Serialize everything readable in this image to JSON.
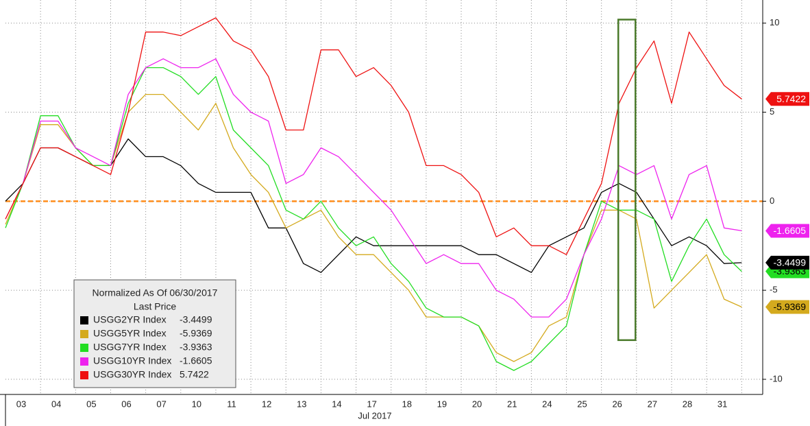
{
  "chart_data": {
    "type": "line",
    "x": [
      0,
      0.5,
      1,
      1.5,
      2,
      2.5,
      3,
      3.5,
      4,
      4.5,
      5,
      5.5,
      6,
      6.5,
      7,
      7.5,
      8,
      8.5,
      9,
      9.5,
      10,
      10.5,
      11,
      11.5,
      12,
      12.5,
      13,
      13.5,
      14,
      14.5,
      15,
      15.5,
      16,
      16.5,
      17,
      17.5,
      18,
      18.5,
      19,
      19.5,
      20,
      20.5,
      21
    ],
    "xlim": [
      0,
      21.6
    ],
    "xticks": [
      {
        "value": 0.45,
        "label": "03"
      },
      {
        "value": 1.45,
        "label": "04"
      },
      {
        "value": 2.45,
        "label": "05"
      },
      {
        "value": 3.45,
        "label": "06"
      },
      {
        "value": 4.45,
        "label": "07"
      },
      {
        "value": 5.45,
        "label": "10"
      },
      {
        "value": 6.45,
        "label": "11"
      },
      {
        "value": 7.45,
        "label": "12"
      },
      {
        "value": 8.45,
        "label": "13"
      },
      {
        "value": 9.45,
        "label": "14"
      },
      {
        "value": 10.45,
        "label": "17"
      },
      {
        "value": 11.45,
        "label": "18"
      },
      {
        "value": 12.45,
        "label": "19"
      },
      {
        "value": 13.45,
        "label": "20"
      },
      {
        "value": 14.45,
        "label": "21"
      },
      {
        "value": 15.45,
        "label": "24"
      },
      {
        "value": 16.45,
        "label": "25"
      },
      {
        "value": 17.45,
        "label": "26"
      },
      {
        "value": 18.45,
        "label": "27"
      },
      {
        "value": 19.45,
        "label": "28"
      },
      {
        "value": 20.45,
        "label": "31"
      }
    ],
    "xgrid": [
      1,
      2,
      3,
      4,
      5,
      6,
      7,
      8,
      9,
      10,
      11,
      12,
      13,
      14,
      15,
      16,
      17,
      18,
      19,
      20,
      21
    ],
    "x_label": "Jul 2017",
    "ylim": [
      -10.85,
      11.3
    ],
    "yticks": [
      10,
      5,
      0,
      -5,
      -10
    ],
    "grid": true,
    "hline": {
      "value": 0,
      "color": "#ff8c1a"
    },
    "highlight": {
      "x": [
        17.48,
        17.97
      ],
      "y": [
        -7.8,
        10.2
      ],
      "color": "#4a7a2a"
    },
    "legend_title": "Normalized As Of 06/30/2017",
    "legend_subtitle": "Last Price",
    "series": [
      {
        "name": "USGG2YR Index",
        "color": "#000000",
        "last_price": -3.4499,
        "label_text_color": "#ffffff",
        "values": [
          0,
          1,
          3,
          3,
          2.5,
          2,
          2,
          3.5,
          2.5,
          2.5,
          2,
          1,
          0.5,
          0.5,
          0.5,
          -1.5,
          -1.5,
          -3.5,
          -4,
          -3,
          -2,
          -2.5,
          -2.5,
          -2.5,
          -2.5,
          -2.5,
          -2.5,
          -3,
          -3,
          -3.5,
          -4,
          -2.5,
          -2,
          -1.5,
          0.5,
          1,
          0.5,
          -1,
          -2.5,
          -2,
          -2.5,
          -3.5,
          -3.45
        ]
      },
      {
        "name": "USGG5YR Index",
        "color": "#d4aa1e",
        "last_price": -5.9369,
        "label_text_color": "#000000",
        "values": [
          -1.3,
          1,
          4.3,
          4.3,
          3,
          2,
          2,
          5,
          6,
          6,
          5,
          4,
          5.5,
          3,
          1.5,
          0.5,
          -1.5,
          -1,
          -0.5,
          -2,
          -3,
          -3,
          -4,
          -5,
          -6.5,
          -6.5,
          -6.5,
          -7,
          -8.5,
          -9,
          -8.5,
          -7,
          -6.5,
          -3,
          -0.5,
          -0.5,
          -1,
          -6,
          -5,
          -4,
          -3,
          -5.5,
          -5.94
        ]
      },
      {
        "name": "USGG7YR Index",
        "color": "#22dd22",
        "last_price": -3.9363,
        "label_text_color": "#000000",
        "values": [
          -1.5,
          1,
          4.8,
          4.8,
          3,
          2,
          2,
          5.5,
          7.5,
          7.5,
          7,
          6,
          7,
          4,
          3,
          2,
          -0.5,
          -1,
          0,
          -1.5,
          -2.5,
          -2,
          -3.5,
          -4.5,
          -6,
          -6.5,
          -6.5,
          -7,
          -9,
          -9.5,
          -9,
          -8,
          -7,
          -3,
          0,
          -0.5,
          -0.5,
          -1,
          -4.5,
          -2.5,
          -1,
          -3,
          -3.94
        ]
      },
      {
        "name": "USGG10YR Index",
        "color": "#ee22ee",
        "last_price": -1.6605,
        "label_text_color": "#ffffff",
        "values": [
          -1,
          1,
          4.5,
          4.5,
          3,
          2.5,
          2,
          6,
          7.5,
          8,
          7.5,
          7.5,
          8,
          6,
          5,
          4.5,
          1,
          1.5,
          3,
          2.5,
          1.5,
          0.5,
          -0.5,
          -2,
          -3.5,
          -3,
          -3.5,
          -3.5,
          -5,
          -5.5,
          -6.5,
          -6.5,
          -5.5,
          -3,
          -1,
          2,
          1.5,
          2,
          -1,
          1.5,
          2,
          -1.5,
          -1.66
        ]
      },
      {
        "name": "USGG30YR Index",
        "color": "#ee1111",
        "last_price": 5.7422,
        "label_text_color": "#ffffff",
        "values": [
          -1,
          1,
          3,
          3,
          2.5,
          2,
          1.5,
          5,
          9.5,
          9.5,
          9.3,
          9.8,
          10.3,
          9,
          8.5,
          7,
          4,
          4,
          8.5,
          8.5,
          7,
          7.5,
          6.5,
          5,
          2,
          2,
          1.5,
          0.5,
          -2,
          -1.5,
          -2.5,
          -2.5,
          -3,
          -1,
          1,
          5.5,
          7.5,
          9,
          5.5,
          9.5,
          8,
          6.5,
          5.74
        ]
      }
    ]
  }
}
